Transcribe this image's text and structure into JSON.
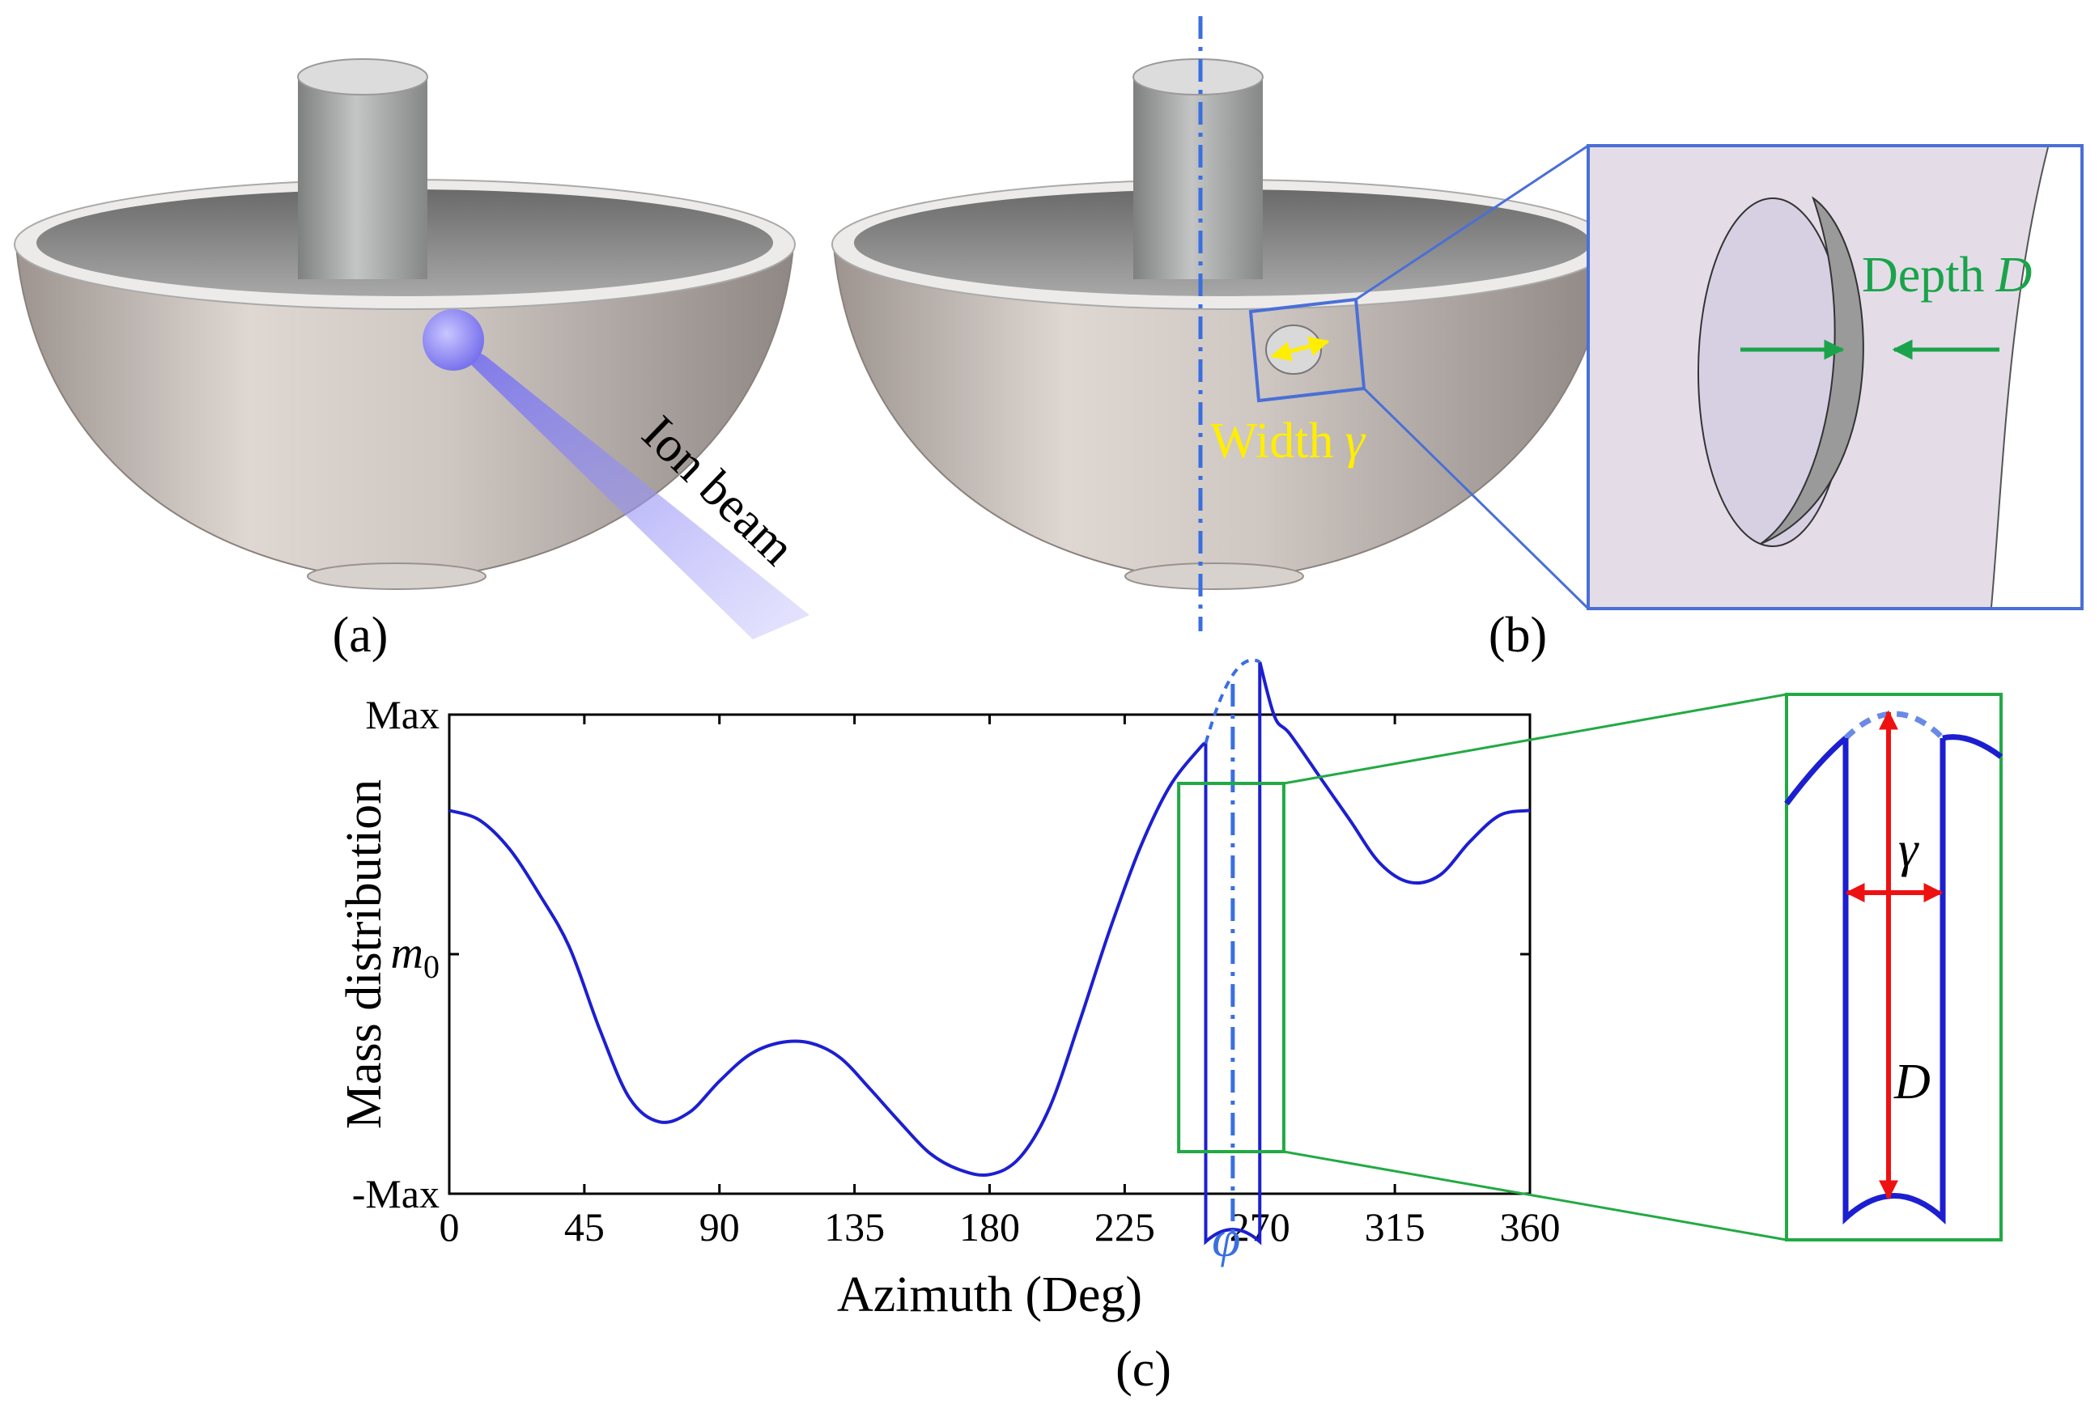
{
  "panels": {
    "a": {
      "label": "(a)",
      "beam_label": "Ion beam"
    },
    "b": {
      "label": "(b)",
      "width_label": "Width",
      "width_symbol": "γ",
      "depth_label": "Depth",
      "depth_symbol": "D"
    },
    "c": {
      "label": "(c)"
    }
  },
  "colors": {
    "curve": "#1c1fd0",
    "axis_marker": "#3a6fe0",
    "zoom_box_c": "#22aa44",
    "zoom_box_b": "#4a6fd6",
    "width_arrow": "#ffee00",
    "depth_arrow": "#1aa34a",
    "inset_arrow": "#ee1111",
    "ion_beam": "#8f8cf5"
  },
  "chart_data": {
    "type": "line",
    "title": "",
    "xlabel": "Azimuth (Deg)",
    "ylabel": "Mass distribution",
    "x_ticks": [
      "0",
      "45",
      "90",
      "135",
      "180",
      "225",
      "270",
      "315",
      "360"
    ],
    "x_tick_values": [
      0,
      45,
      90,
      135,
      180,
      225,
      270,
      315,
      360
    ],
    "y_ticks": [
      "-Max",
      "m0",
      "Max"
    ],
    "y_tick_values": [
      -1,
      0,
      1
    ],
    "y_tick_m0": {
      "base": "m",
      "sub": "0"
    },
    "xlim": [
      0,
      360
    ],
    "ylim": [
      -1,
      1
    ],
    "marker_symbol": "φ",
    "marker_x": 261,
    "groove": {
      "x_start": 252,
      "x_end": 270,
      "bottom_y": -1.2
    },
    "zoom_region": {
      "x_start": 243,
      "x_end": 278
    },
    "inset_labels": {
      "width_symbol": "γ",
      "depth_symbol": "D"
    },
    "series": [
      {
        "name": "mass distribution",
        "x": [
          0,
          10,
          20,
          30,
          40,
          50,
          60,
          70,
          80,
          90,
          100,
          110,
          120,
          130,
          140,
          150,
          160,
          170,
          180,
          190,
          200,
          210,
          220,
          230,
          240,
          250,
          252,
          270,
          275,
          280,
          290,
          300,
          310,
          320,
          330,
          340,
          350,
          360
        ],
        "y": [
          0.6,
          0.56,
          0.44,
          0.25,
          0.03,
          -0.31,
          -0.6,
          -0.7,
          -0.66,
          -0.53,
          -0.42,
          -0.37,
          -0.37,
          -0.43,
          -0.56,
          -0.7,
          -0.83,
          -0.9,
          -0.92,
          -0.85,
          -0.64,
          -0.28,
          0.1,
          0.44,
          0.7,
          0.86,
          0.88,
          1.22,
          0.99,
          0.92,
          0.74,
          0.56,
          0.38,
          0.3,
          0.33,
          0.47,
          0.58,
          0.6
        ]
      }
    ]
  }
}
